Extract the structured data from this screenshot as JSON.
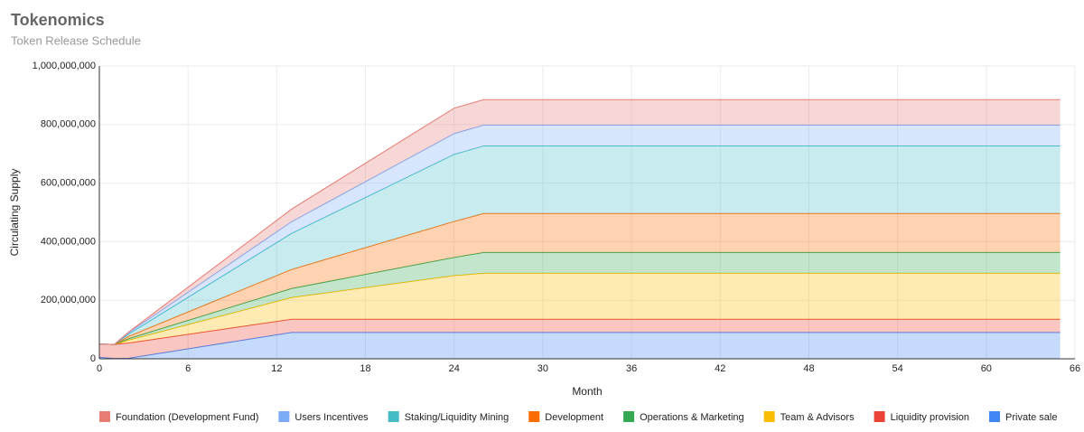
{
  "chart_data": {
    "type": "stacked-area",
    "title": "Tokenomics",
    "subtitle": "Token Release Schedule",
    "x_label": "Month",
    "y_label": "Circulating Supply",
    "x": [
      0,
      1,
      2,
      13,
      24,
      26,
      65
    ],
    "xlim": [
      0,
      66
    ],
    "xticks": [
      0,
      6,
      12,
      18,
      24,
      30,
      36,
      42,
      48,
      54,
      60,
      66
    ],
    "ylim": [
      0,
      1000000000
    ],
    "yticks": [
      0,
      {
        "value": 200000000,
        "label": "200,000,000"
      },
      {
        "value": 400000000,
        "label": "400,000,000"
      },
      {
        "value": 600000000,
        "label": "600,000,000"
      },
      {
        "value": 800000000,
        "label": "800,000,000"
      },
      {
        "value": 1000000000,
        "label": "1,000,000,000"
      }
    ],
    "grid": true,
    "legend": "bottom",
    "series": [
      {
        "name": "Foundation (Development Fund)",
        "color": "#e67c73",
        "values": [
          0,
          0,
          2000000,
          43000000,
          87000000,
          87000000,
          87000000
        ]
      },
      {
        "name": "Users Incentives",
        "color": "#7baaf7",
        "values": [
          0,
          0,
          5000000,
          40000000,
          71000000,
          71000000,
          71000000
        ]
      },
      {
        "name": "Staking/Liquidity Mining",
        "color": "#46bdc6",
        "values": [
          0,
          0,
          8000000,
          123000000,
          229000000,
          231000000,
          231000000
        ]
      },
      {
        "name": "Development",
        "color": "#ff6d01",
        "values": [
          0,
          0,
          8000000,
          65000000,
          123000000,
          133000000,
          133000000
        ]
      },
      {
        "name": "Operations & Marketing",
        "color": "#34a853",
        "values": [
          0,
          0,
          5000000,
          31000000,
          62000000,
          71000000,
          71000000
        ]
      },
      {
        "name": "Team & Advisors",
        "color": "#fbbc04",
        "values": [
          0,
          0,
          10000000,
          74000000,
          149000000,
          157000000,
          157000000
        ]
      },
      {
        "name": "Liquidity provision",
        "color": "#ea4335",
        "values": [
          45000000,
          48000000,
          52000000,
          45000000,
          45000000,
          45000000,
          45000000
        ]
      },
      {
        "name": "Private sale",
        "color": "#4285f4",
        "values": [
          5000000,
          1000000,
          2000000,
          90000000,
          90000000,
          90000000,
          90000000
        ]
      }
    ]
  }
}
